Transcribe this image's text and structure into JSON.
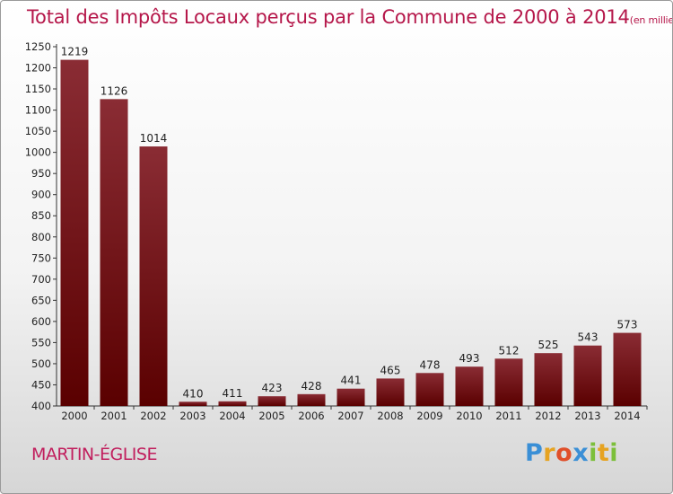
{
  "title": "Total des Impôts Locaux perçus par la Commune de 2000 à 2014",
  "title_unit": "(en milliers d'€)",
  "commune": "MARTIN-ÉGLISE",
  "logo": {
    "letters": [
      "P",
      "r",
      "o",
      "x",
      "i",
      "t",
      "i"
    ],
    "colors": [
      "#3a8fd6",
      "#e6a321",
      "#e04f2a",
      "#3a8fd6",
      "#7cbf3a",
      "#e6a321",
      "#7cbf3a"
    ]
  },
  "colors": {
    "title": "#b5174a",
    "bar_top": "#8a2c34",
    "bar_bottom": "#5a0000"
  },
  "chart_data": {
    "type": "bar",
    "categories": [
      "2000",
      "2001",
      "2002",
      "2003",
      "2004",
      "2005",
      "2006",
      "2007",
      "2008",
      "2009",
      "2010",
      "2011",
      "2012",
      "2013",
      "2014"
    ],
    "values": [
      1219,
      1126,
      1014,
      410,
      411,
      423,
      428,
      441,
      465,
      478,
      493,
      512,
      525,
      543,
      573
    ],
    "ylim": [
      400,
      1250
    ],
    "yticks": [
      400,
      450,
      500,
      550,
      600,
      650,
      700,
      750,
      800,
      850,
      900,
      950,
      1000,
      1050,
      1100,
      1150,
      1200,
      1250
    ],
    "grid": false
  }
}
